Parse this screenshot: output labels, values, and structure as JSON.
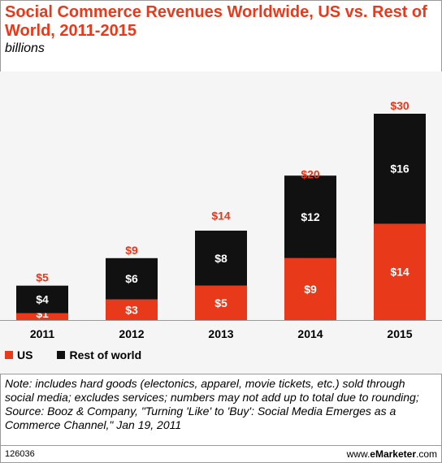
{
  "header": {
    "title": "Social Commerce Revenues Worldwide, US vs. Rest of World, 2011-2015",
    "subtitle": "billions"
  },
  "chart_data": {
    "type": "bar",
    "stacked": true,
    "categories": [
      "2011",
      "2012",
      "2013",
      "2014",
      "2015"
    ],
    "series": [
      {
        "name": "US",
        "values": [
          1,
          3,
          5,
          9,
          14
        ],
        "labels": [
          "$1",
          "$3",
          "$5",
          "$9",
          "$14"
        ],
        "color": "#e8391b"
      },
      {
        "name": "Rest of world",
        "values": [
          4,
          6,
          8,
          12,
          16
        ],
        "labels": [
          "$4",
          "$6",
          "$8",
          "$12",
          "$16"
        ],
        "color": "#111111"
      }
    ],
    "totals": [
      5,
      9,
      14,
      20,
      30
    ],
    "total_labels": [
      "$5",
      "$9",
      "$14",
      "$20",
      "$30"
    ],
    "total_color": "#e8391b",
    "ylim": [
      0,
      33
    ],
    "grid": false,
    "legend_position": "bottom-left"
  },
  "notes": {
    "note": "Note: includes hard goods (electonics, apparel, movie tickets, etc.) sold through social media; excludes services; numbers may not add up to total due to rounding;",
    "source": "Source: Booz & Company, \"Turning 'Like' to 'Buy': Social Media Emerges as a Commerce Channel,\" Jan 19, 2011"
  },
  "footer": {
    "chart_id": "126036",
    "brand_prefix": "www.",
    "brand_bold": "eMarketer",
    "brand_suffix": ".com"
  }
}
